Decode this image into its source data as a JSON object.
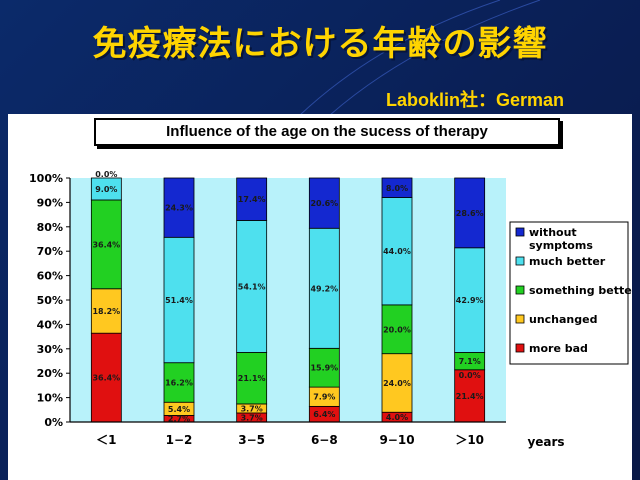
{
  "slide": {
    "title": "免疫療法における年齢の影響",
    "subtitle": "Laboklin社：German"
  },
  "chart_data": {
    "type": "bar",
    "stacked": true,
    "percent": true,
    "title": "Influence of the age on the sucess of therapy",
    "xlabel": "years",
    "ylabel": "",
    "categories": [
      "＜1",
      "1−2",
      "3−5",
      "6−8",
      "9−10",
      "＞10"
    ],
    "ylim": [
      0,
      100
    ],
    "yticks": [
      "0%",
      "10%",
      "20%",
      "30%",
      "40%",
      "50%",
      "60%",
      "70%",
      "80%",
      "90%",
      "100%"
    ],
    "grid": false,
    "legend_position": "right",
    "series": [
      {
        "name": "more bad",
        "color": "#e01010",
        "values": [
          36.4,
          2.7,
          3.7,
          6.4,
          4.0,
          21.4
        ],
        "labels": [
          "36.4%",
          "2.7%",
          "3.7%",
          "6.4%",
          "4.0%",
          "21.4%"
        ]
      },
      {
        "name": "unchanged",
        "color": "#ffc820",
        "values": [
          18.2,
          5.4,
          3.7,
          7.9,
          24.0,
          0.0
        ],
        "labels": [
          "18.2%",
          "5.4%",
          "3.7%",
          "7.9%",
          "24.0%",
          "0.0%"
        ]
      },
      {
        "name": "something better",
        "color": "#22d022",
        "values": [
          36.4,
          16.2,
          21.1,
          15.9,
          20.0,
          7.1
        ],
        "labels": [
          "36.4%",
          "16.2%",
          "21.1%",
          "15.9%",
          "20.0%",
          "7.1%"
        ]
      },
      {
        "name": "much better",
        "color": "#4ee0ee",
        "values": [
          9.0,
          51.4,
          54.1,
          49.2,
          44.0,
          42.9
        ],
        "labels": [
          "9.0%",
          "51.4%",
          "54.1%",
          "49.2%",
          "44.0%",
          "42.9%"
        ]
      },
      {
        "name": "without symptoms",
        "color": "#1428d0",
        "values": [
          0.0,
          24.3,
          17.4,
          20.6,
          8.0,
          28.6
        ],
        "labels": [
          "0.0%",
          "24.3%",
          "17.4%",
          "20.6%",
          "8.0%",
          "28.6%"
        ]
      }
    ],
    "legend_order": [
      "without symptoms",
      "much better",
      "something better",
      "unchanged",
      "more bad"
    ],
    "legend_lines": {
      "without symptoms": [
        "without",
        "symptoms"
      ]
    }
  }
}
